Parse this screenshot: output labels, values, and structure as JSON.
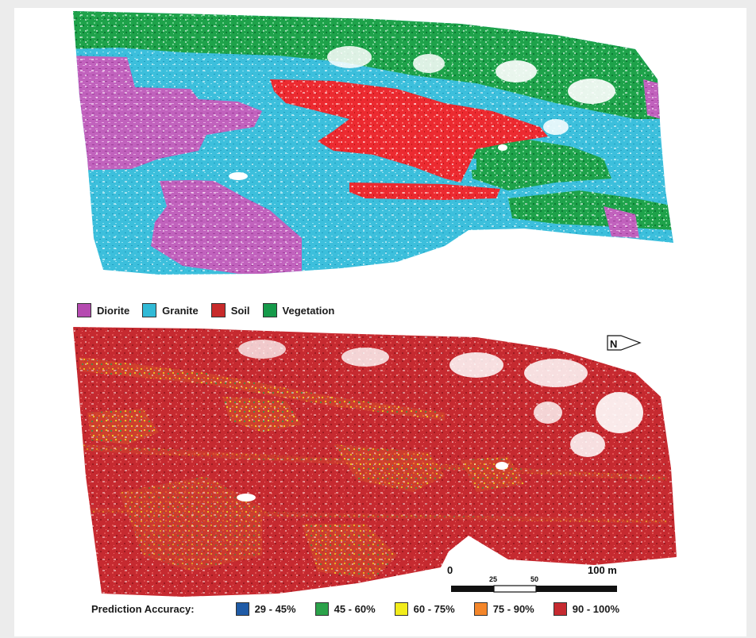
{
  "class_map": {
    "legend": [
      {
        "label": "Diorite",
        "color": "#b54ab0"
      },
      {
        "label": "Granite",
        "color": "#31bad6"
      },
      {
        "label": "Soil",
        "color": "#c82a2a"
      },
      {
        "label": "Vegetation",
        "color": "#169a4a"
      }
    ],
    "colors": {
      "diorite": "#c162bd",
      "granite": "#3cbfdc",
      "soil": "#ec2a30",
      "vegetation": "#1ea24a"
    }
  },
  "accuracy_map": {
    "north_label": "N",
    "legend_title": "Prediction Accuracy:",
    "legend": [
      {
        "label": "29 - 45%",
        "color": "#1f5ba6"
      },
      {
        "label": "45 - 60%",
        "color": "#2ba24a"
      },
      {
        "label": "60 - 75%",
        "color": "#f2ec1b"
      },
      {
        "label": "75 - 90%",
        "color": "#f4862a"
      },
      {
        "label": "90 - 100%",
        "color": "#c62a30"
      }
    ]
  },
  "scale_bar": {
    "label_0": "0",
    "label_25": "25",
    "label_50": "50",
    "label_100": "100 m"
  }
}
